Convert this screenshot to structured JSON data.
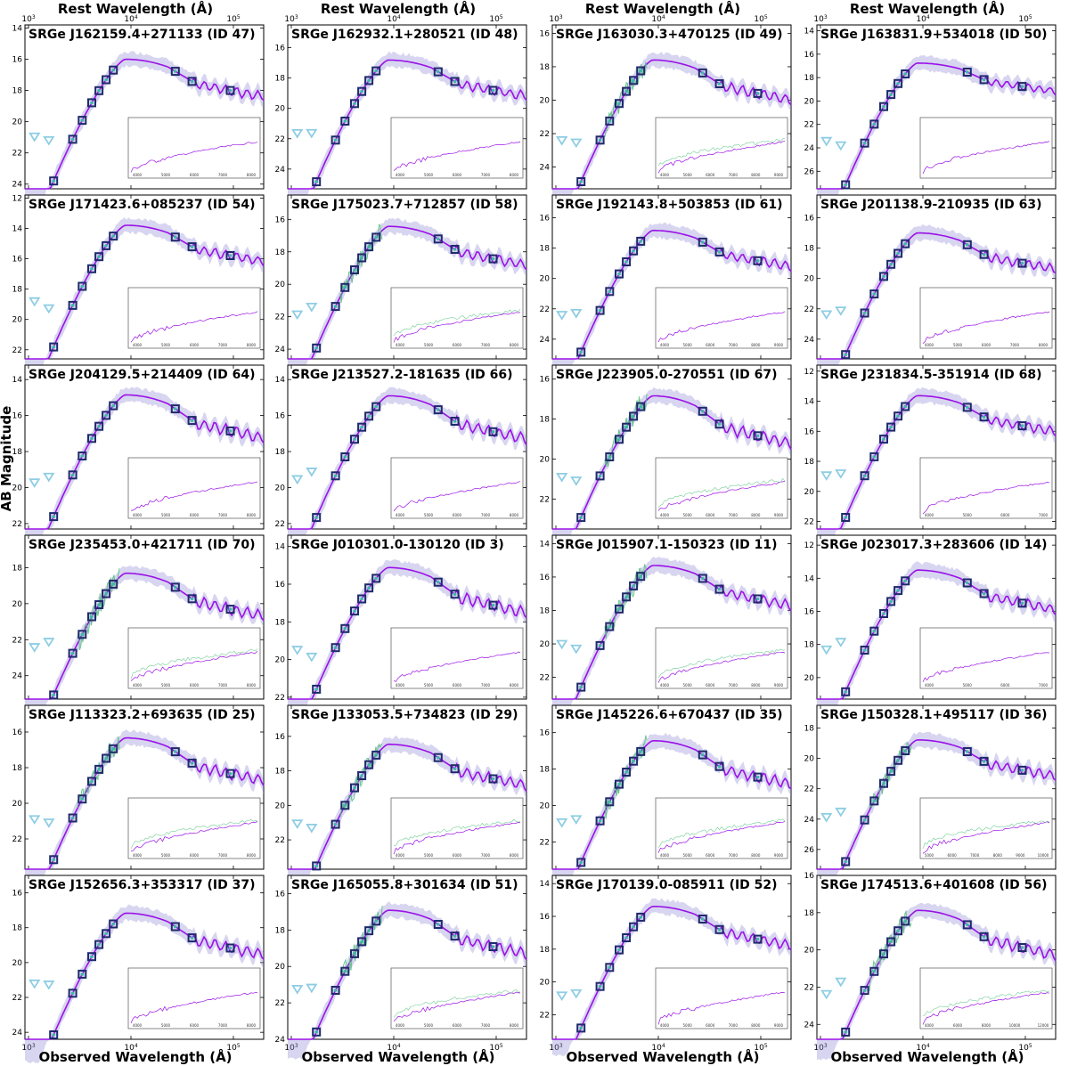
{
  "figure": {
    "top_axis_label": "Rest Wavelength (Å)",
    "bottom_axis_label": "Observed Wavelength (Å)",
    "y_axis_label": "AB Magnitude",
    "colors": {
      "model": "#9b11e8",
      "model_band": "#8b86d4",
      "photometry_box": "#1f2a6b",
      "model_photometry": "#3fb6a8",
      "upper_limit": "#8ecde4",
      "spectrum": "#4fc07a",
      "detection_circle": "#20b77a"
    }
  },
  "chart_data": [
    {
      "type": "line",
      "title": "SRGe J162159.4+271133 (ID 47)",
      "xscale": "log",
      "yinverted": true,
      "ylim": [
        24.3,
        13.8
      ],
      "yticks": [
        "14",
        "16",
        "18",
        "20",
        "22",
        "24"
      ],
      "xticks_top": [
        "10^3",
        "10^4",
        "10^5"
      ],
      "xticks_bottom": [],
      "inset_xticks": [
        "4000",
        "5000",
        "6000",
        "7000",
        "8000"
      ],
      "has_spectrum": false
    },
    {
      "type": "line",
      "title": "SRGe J162932.1+280521 (ID 48)",
      "xscale": "log",
      "yinverted": true,
      "ylim": [
        25.3,
        14.5
      ],
      "yticks": [
        "16",
        "18",
        "20",
        "22",
        "24"
      ],
      "xticks_top": [
        "10^3",
        "10^4",
        "10^5"
      ],
      "xticks_bottom": [],
      "inset_xticks": [
        "4000",
        "5000",
        "6000",
        "7000",
        "8000"
      ],
      "has_spectrum": false
    },
    {
      "type": "line",
      "title": "SRGe J163030.3+470125 (ID 49)",
      "xscale": "log",
      "yinverted": true,
      "ylim": [
        25.3,
        15.5
      ],
      "yticks": [
        "16",
        "18",
        "20",
        "22",
        "24"
      ],
      "xticks_top": [
        "10^3",
        "10^4",
        "10^5"
      ],
      "xticks_bottom": [],
      "inset_xticks": [
        "4000",
        "5000",
        "6000",
        "7000",
        "8000",
        "9000"
      ],
      "has_spectrum": true
    },
    {
      "type": "line",
      "title": "SRGe J163831.9+534018 (ID 50)",
      "xscale": "log",
      "yinverted": true,
      "ylim": [
        27.5,
        13.5
      ],
      "yticks": [
        "14",
        "16",
        "18",
        "20",
        "22",
        "24",
        "26"
      ],
      "xticks_top": [
        "10^3",
        "10^4",
        "10^5"
      ],
      "xticks_bottom": [],
      "inset_xticks": [],
      "has_spectrum": false
    },
    {
      "type": "line",
      "title": "SRGe J171423.6+085237 (ID 54)",
      "xscale": "log",
      "yinverted": true,
      "ylim": [
        22.6,
        11.8
      ],
      "yticks": [
        "12",
        "14",
        "16",
        "18",
        "20",
        "22"
      ],
      "xticks_top": [],
      "xticks_bottom": [],
      "inset_xticks": [
        "4000",
        "5000",
        "6000",
        "7000",
        "8000"
      ],
      "has_spectrum": false
    },
    {
      "type": "line",
      "title": "SRGe J175023.7+712857 (ID 58)",
      "xscale": "log",
      "yinverted": true,
      "ylim": [
        24.6,
        14.5
      ],
      "yticks": [
        "16",
        "18",
        "20",
        "22",
        "24"
      ],
      "xticks_top": [],
      "xticks_bottom": [],
      "inset_xticks": [
        "4000",
        "5000",
        "6000",
        "7000",
        "8000"
      ],
      "has_spectrum": true
    },
    {
      "type": "line",
      "title": "SRGe J192143.8+503853 (ID 61)",
      "xscale": "log",
      "yinverted": true,
      "ylim": [
        25.3,
        14.5
      ],
      "yticks": [
        "16",
        "18",
        "20",
        "22",
        "24"
      ],
      "xticks_top": [],
      "xticks_bottom": [],
      "inset_xticks": [
        "4000",
        "5000",
        "6000",
        "7000",
        "8000",
        "9000"
      ],
      "has_spectrum": false
    },
    {
      "type": "line",
      "title": "SRGe J201138.9-210935 (ID 63)",
      "xscale": "log",
      "yinverted": true,
      "ylim": [
        25.3,
        14.5
      ],
      "yticks": [
        "16",
        "18",
        "20",
        "22",
        "24"
      ],
      "xticks_top": [],
      "xticks_bottom": [],
      "inset_xticks": [
        "4000",
        "5000",
        "6000",
        "7000",
        "8000"
      ],
      "has_spectrum": false
    },
    {
      "type": "line",
      "title": "SRGe J204129.5+214409 (ID 64)",
      "xscale": "log",
      "yinverted": true,
      "ylim": [
        22.3,
        13.2
      ],
      "yticks": [
        "14",
        "16",
        "18",
        "20",
        "22"
      ],
      "xticks_top": [],
      "xticks_bottom": [],
      "inset_xticks": [
        "4000",
        "5000",
        "6000",
        "7000",
        "8000"
      ],
      "has_spectrum": false
    },
    {
      "type": "line",
      "title": "SRGe J213527.2-181635 (ID 66)",
      "xscale": "log",
      "yinverted": true,
      "ylim": [
        22.3,
        13.2
      ],
      "yticks": [
        "14",
        "16",
        "18",
        "20",
        "22"
      ],
      "xticks_top": [],
      "xticks_bottom": [],
      "inset_xticks": [
        "4000",
        "5000",
        "6000",
        "7000",
        "8000"
      ],
      "has_spectrum": false
    },
    {
      "type": "line",
      "title": "SRGe J223905.0-270551 (ID 67)",
      "xscale": "log",
      "yinverted": true,
      "ylim": [
        23.5,
        15.3
      ],
      "yticks": [
        "16",
        "18",
        "20",
        "22"
      ],
      "xticks_top": [],
      "xticks_bottom": [],
      "inset_xticks": [
        "4000",
        "5000",
        "6000",
        "7000",
        "8000",
        "9000"
      ],
      "has_spectrum": true
    },
    {
      "type": "line",
      "title": "SRGe J231834.5-351914 (ID 68)",
      "xscale": "log",
      "yinverted": true,
      "ylim": [
        22.5,
        11.6
      ],
      "yticks": [
        "12",
        "14",
        "16",
        "18",
        "20",
        "22"
      ],
      "xticks_top": [],
      "xticks_bottom": [],
      "inset_xticks": [
        "4000",
        "5000",
        "6000",
        "7000"
      ],
      "has_spectrum": false
    },
    {
      "type": "line",
      "title": "SRGe J235453.0+421711 (ID 70)",
      "xscale": "log",
      "yinverted": true,
      "ylim": [
        25.3,
        16.2
      ],
      "yticks": [
        "18",
        "20",
        "22",
        "24"
      ],
      "xticks_top": [],
      "xticks_bottom": [],
      "inset_xticks": [
        "4000",
        "5000",
        "6000",
        "7000",
        "8000"
      ],
      "has_spectrum": true
    },
    {
      "type": "line",
      "title": "SRGe J010301.0-130120 (ID 3)",
      "xscale": "log",
      "yinverted": true,
      "ylim": [
        22.1,
        13.4
      ],
      "yticks": [
        "14",
        "16",
        "18",
        "20",
        "22"
      ],
      "xticks_top": [],
      "xticks_bottom": [],
      "inset_xticks": [
        "4000",
        "5000",
        "6000",
        "7000",
        "8000"
      ],
      "has_spectrum": false
    },
    {
      "type": "line",
      "title": "SRGe J015907.1-150323 (ID 11)",
      "xscale": "log",
      "yinverted": true,
      "ylim": [
        23.3,
        13.5
      ],
      "yticks": [
        "14",
        "16",
        "18",
        "20",
        "22"
      ],
      "xticks_top": [],
      "xticks_bottom": [],
      "inset_xticks": [
        "4000",
        "5000",
        "6000",
        "7000",
        "8000",
        "9000"
      ],
      "has_spectrum": true
    },
    {
      "type": "line",
      "title": "SRGe J023017.3+283606 (ID 14)",
      "xscale": "log",
      "yinverted": true,
      "ylim": [
        21.3,
        11.4
      ],
      "yticks": [
        "12",
        "14",
        "16",
        "18",
        "20"
      ],
      "xticks_top": [],
      "xticks_bottom": [],
      "inset_xticks": [
        "4000",
        "5000",
        "6000",
        "7000"
      ],
      "has_spectrum": false
    },
    {
      "type": "line",
      "title": "SRGe J113323.2+693635 (ID 25)",
      "xscale": "log",
      "yinverted": true,
      "ylim": [
        23.7,
        14.5
      ],
      "yticks": [
        "16",
        "18",
        "20",
        "22"
      ],
      "xticks_top": [],
      "xticks_bottom": [],
      "inset_xticks": [
        "4000",
        "5000",
        "6000",
        "7000",
        "8000"
      ],
      "has_spectrum": true
    },
    {
      "type": "line",
      "title": "SRGe J133053.5+734823 (ID 29)",
      "xscale": "log",
      "yinverted": true,
      "ylim": [
        23.7,
        14.2
      ],
      "yticks": [
        "16",
        "18",
        "20",
        "22"
      ],
      "xticks_top": [],
      "xticks_bottom": [],
      "inset_xticks": [
        "4000",
        "5000",
        "6000",
        "7000",
        "8000"
      ],
      "has_spectrum": true
    },
    {
      "type": "line",
      "title": "SRGe J145226.6+670437 (ID 35)",
      "xscale": "log",
      "yinverted": true,
      "ylim": [
        23.5,
        14.5
      ],
      "yticks": [
        "16",
        "18",
        "20",
        "22"
      ],
      "xticks_top": [],
      "xticks_bottom": [],
      "inset_xticks": [
        "4000",
        "5000",
        "6000",
        "7000",
        "8000",
        "9000"
      ],
      "has_spectrum": true
    },
    {
      "type": "line",
      "title": "SRGe J150328.1+495117 (ID 36)",
      "xscale": "log",
      "yinverted": true,
      "ylim": [
        27.3,
        16.5
      ],
      "yticks": [
        "18",
        "20",
        "22",
        "24",
        "26"
      ],
      "xticks_top": [],
      "xticks_bottom": [],
      "inset_xticks": [
        "5000",
        "6000",
        "7000",
        "8000",
        "9000",
        "10000"
      ],
      "has_spectrum": true
    },
    {
      "type": "line",
      "title": "SRGe J152656.3+353317 (ID 37)",
      "xscale": "log",
      "yinverted": true,
      "ylim": [
        24.4,
        15.0
      ],
      "yticks": [
        "16",
        "18",
        "20",
        "22",
        "24"
      ],
      "xticks_top": [],
      "xticks_bottom": [
        "10^3",
        "10^4",
        "10^5"
      ],
      "inset_xticks": [
        "4000",
        "5000",
        "6000",
        "7000",
        "8000"
      ],
      "has_spectrum": false
    },
    {
      "type": "line",
      "title": "SRGe J165055.8+301634 (ID 51)",
      "xscale": "log",
      "yinverted": true,
      "ylim": [
        24.0,
        15.0
      ],
      "yticks": [
        "16",
        "18",
        "20",
        "22",
        "24"
      ],
      "xticks_top": [],
      "xticks_bottom": [
        "10^3",
        "10^4",
        "10^5"
      ],
      "inset_xticks": [
        "4000",
        "5000",
        "6000",
        "7000",
        "8000"
      ],
      "has_spectrum": true
    },
    {
      "type": "line",
      "title": "SRGe J170139.0-085911 (ID 52)",
      "xscale": "log",
      "yinverted": true,
      "ylim": [
        23.5,
        13.5
      ],
      "yticks": [
        "14",
        "16",
        "18",
        "20",
        "22"
      ],
      "xticks_top": [],
      "xticks_bottom": [
        "10^3",
        "10^4",
        "10^5"
      ],
      "inset_xticks": [
        "4000",
        "5000",
        "6000",
        "7000",
        "8000",
        "9000"
      ],
      "has_spectrum": false
    },
    {
      "type": "line",
      "title": "SRGe J174513.6+401608 (ID 56)",
      "xscale": "log",
      "yinverted": true,
      "ylim": [
        24.8,
        16.0
      ],
      "yticks": [
        "16",
        "18",
        "20",
        "22",
        "24"
      ],
      "xticks_top": [],
      "xticks_bottom": [
        "10^3",
        "10^4",
        "10^5"
      ],
      "inset_xticks": [
        "4000",
        "6000",
        "8000",
        "10000",
        "12000"
      ],
      "has_spectrum": true
    }
  ]
}
